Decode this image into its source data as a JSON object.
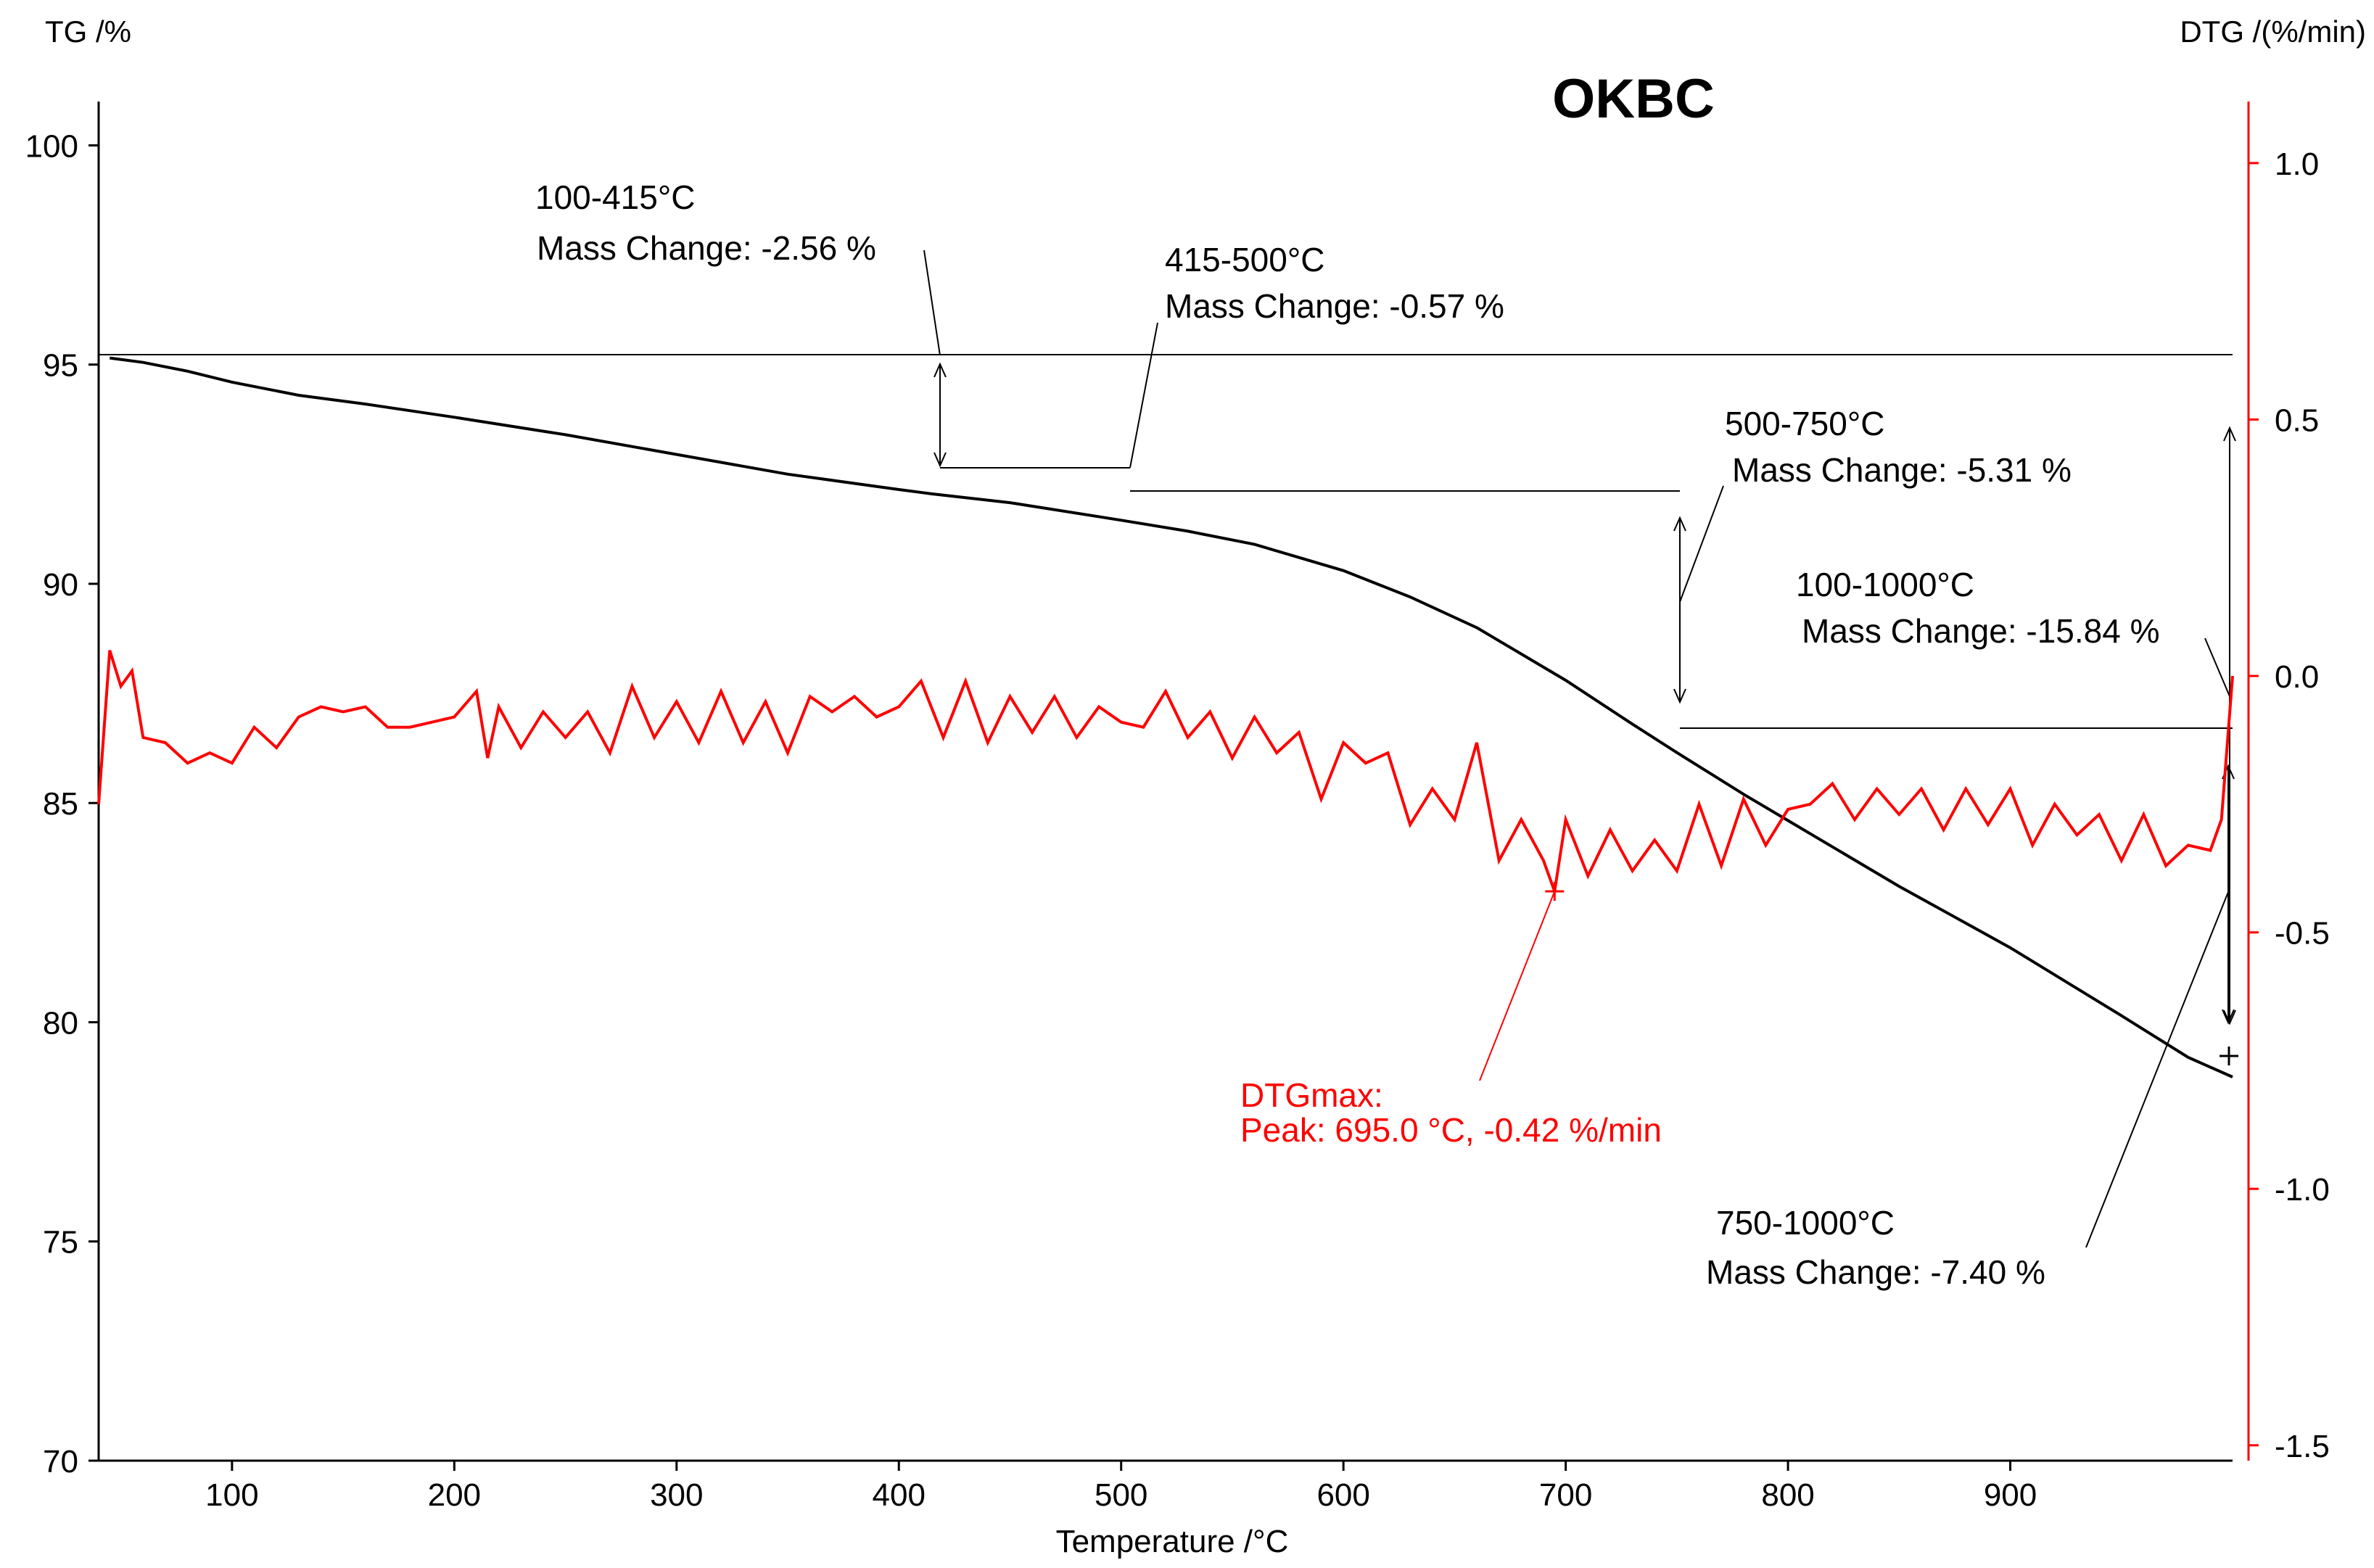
{
  "chart_data": {
    "type": "line",
    "title": "OKBC",
    "xlabel": "Temperature /°C",
    "ylabel_left": "TG /%",
    "ylabel_right": "DTG /(%/min)",
    "xlim": [
      40,
      1000
    ],
    "ylim_left": [
      70,
      101
    ],
    "ylim_right": [
      -1.53,
      1.12
    ],
    "x_ticks": [
      100,
      200,
      300,
      400,
      500,
      600,
      700,
      800,
      900
    ],
    "y_left_ticks": [
      70,
      75,
      80,
      85,
      90,
      95,
      100
    ],
    "y_right_ticks": [
      -1.5,
      -1.0,
      -0.5,
      0.0,
      0.5,
      1.0
    ],
    "y_right_tick_labels": [
      "-1.5",
      "-1.0",
      "-0.5",
      "0.0",
      "0.5",
      "1.0"
    ],
    "grid": false,
    "series": [
      {
        "name": "TG",
        "axis": "left",
        "color": "#000000",
        "x": [
          45,
          60,
          80,
          100,
          130,
          160,
          200,
          250,
          300,
          350,
          400,
          415,
          450,
          500,
          530,
          560,
          600,
          630,
          660,
          700,
          730,
          750,
          780,
          800,
          850,
          900,
          950,
          980,
          1000
        ],
        "y": [
          95.15,
          95.05,
          94.85,
          94.6,
          94.3,
          94.1,
          93.8,
          93.4,
          92.95,
          92.5,
          92.15,
          92.05,
          91.85,
          91.45,
          91.2,
          90.9,
          90.3,
          89.7,
          89.0,
          87.8,
          86.8,
          86.15,
          85.2,
          84.6,
          83.1,
          81.7,
          80.15,
          79.2,
          78.75
        ]
      },
      {
        "name": "DTG",
        "axis": "right",
        "color": "#ff0000",
        "x": [
          40,
          45,
          50,
          55,
          60,
          70,
          80,
          90,
          100,
          110,
          120,
          130,
          140,
          150,
          160,
          170,
          180,
          190,
          200,
          210,
          215,
          220,
          230,
          240,
          250,
          260,
          270,
          280,
          290,
          300,
          310,
          320,
          330,
          340,
          350,
          360,
          370,
          380,
          390,
          400,
          410,
          420,
          430,
          440,
          450,
          460,
          470,
          480,
          490,
          500,
          510,
          520,
          530,
          540,
          550,
          560,
          570,
          580,
          590,
          600,
          610,
          620,
          630,
          640,
          650,
          660,
          670,
          680,
          690,
          695,
          700,
          710,
          720,
          730,
          740,
          750,
          760,
          770,
          780,
          790,
          800,
          810,
          820,
          830,
          840,
          850,
          860,
          870,
          880,
          890,
          900,
          910,
          920,
          930,
          940,
          950,
          960,
          970,
          980,
          990,
          995,
          1000
        ],
        "y": [
          -0.25,
          0.05,
          -0.02,
          0.01,
          -0.12,
          -0.13,
          -0.17,
          -0.15,
          -0.17,
          -0.1,
          -0.14,
          -0.08,
          -0.06,
          -0.07,
          -0.06,
          -0.1,
          -0.1,
          -0.09,
          -0.08,
          -0.03,
          -0.16,
          -0.06,
          -0.14,
          -0.07,
          -0.12,
          -0.07,
          -0.15,
          -0.02,
          -0.12,
          -0.05,
          -0.13,
          -0.03,
          -0.13,
          -0.05,
          -0.15,
          -0.04,
          -0.07,
          -0.04,
          -0.08,
          -0.06,
          -0.01,
          -0.12,
          -0.01,
          -0.13,
          -0.04,
          -0.11,
          -0.04,
          -0.12,
          -0.06,
          -0.09,
          -0.1,
          -0.03,
          -0.12,
          -0.07,
          -0.16,
          -0.08,
          -0.15,
          -0.11,
          -0.24,
          -0.13,
          -0.17,
          -0.15,
          -0.29,
          -0.22,
          -0.28,
          -0.13,
          -0.36,
          -0.28,
          -0.36,
          -0.42,
          -0.28,
          -0.39,
          -0.3,
          -0.38,
          -0.32,
          -0.38,
          -0.25,
          -0.37,
          -0.24,
          -0.33,
          -0.26,
          -0.25,
          -0.21,
          -0.28,
          -0.22,
          -0.27,
          -0.22,
          -0.3,
          -0.22,
          -0.29,
          -0.22,
          -0.33,
          -0.25,
          -0.31,
          -0.27,
          -0.36,
          -0.27,
          -0.37,
          -0.33,
          -0.34,
          -0.28,
          0.0
        ]
      }
    ],
    "annotations": [
      {
        "range": "100-415°C",
        "text": "Mass Change: -2.56 %"
      },
      {
        "range": "415-500°C",
        "text": "Mass Change: -0.57 %"
      },
      {
        "range": "500-750°C",
        "text": "Mass Change: -5.31 %"
      },
      {
        "range": "100-1000°C",
        "text": "Mass Change: -15.84 %"
      },
      {
        "range": "750-1000°C",
        "text": "Mass Change: -7.40 %"
      }
    ],
    "dtg_peak": {
      "label": "DTGmax:",
      "text": "Peak: 695.0 °C, -0.42 %/min",
      "x": 695.0,
      "y": -0.42
    }
  }
}
